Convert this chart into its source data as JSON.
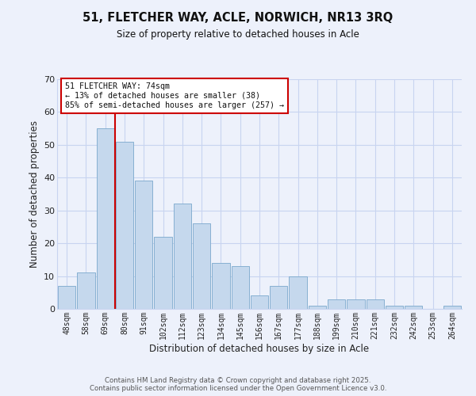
{
  "title": "51, FLETCHER WAY, ACLE, NORWICH, NR13 3RQ",
  "subtitle": "Size of property relative to detached houses in Acle",
  "xlabel": "Distribution of detached houses by size in Acle",
  "ylabel": "Number of detached properties",
  "bar_labels": [
    "48sqm",
    "58sqm",
    "69sqm",
    "80sqm",
    "91sqm",
    "102sqm",
    "112sqm",
    "123sqm",
    "134sqm",
    "145sqm",
    "156sqm",
    "167sqm",
    "177sqm",
    "188sqm",
    "199sqm",
    "210sqm",
    "221sqm",
    "232sqm",
    "242sqm",
    "253sqm",
    "264sqm"
  ],
  "bar_values": [
    7,
    11,
    55,
    51,
    39,
    22,
    32,
    26,
    14,
    13,
    4,
    7,
    10,
    1,
    3,
    3,
    3,
    1,
    1,
    0,
    1
  ],
  "bar_color": "#c5d8ed",
  "bar_edge_color": "#7aa8cc",
  "bg_color": "#edf1fb",
  "grid_color": "#c8d4f0",
  "vline_color": "#cc0000",
  "annotation_title": "51 FLETCHER WAY: 74sqm",
  "annotation_line1": "← 13% of detached houses are smaller (38)",
  "annotation_line2": "85% of semi-detached houses are larger (257) →",
  "annotation_box_color": "#ffffff",
  "annotation_box_edge": "#cc0000",
  "ylim": [
    0,
    70
  ],
  "yticks": [
    0,
    10,
    20,
    30,
    40,
    50,
    60,
    70
  ],
  "footer1": "Contains HM Land Registry data © Crown copyright and database right 2025.",
  "footer2": "Contains public sector information licensed under the Open Government Licence v3.0."
}
